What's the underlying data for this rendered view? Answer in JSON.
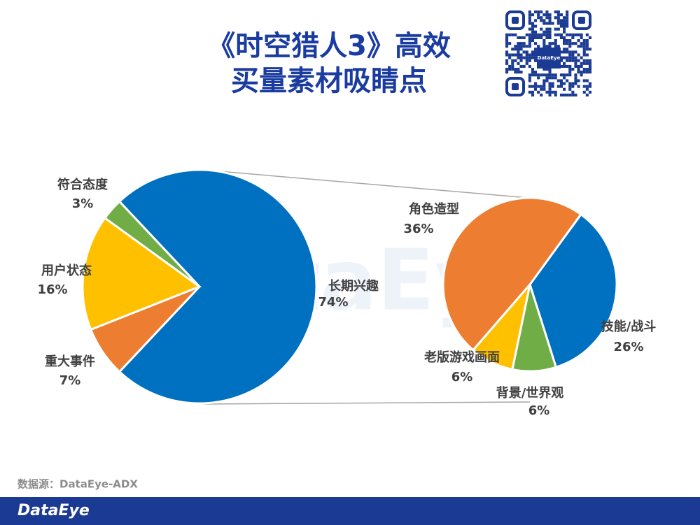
{
  "header": {
    "title_lines": [
      "《时空猎人3》高效",
      "买量素材吸睛点"
    ]
  },
  "qr_label": "DataEye",
  "watermark": "DataEye",
  "source": "数据源：DataEye-ADX",
  "footer": {
    "brand": "DataEye"
  },
  "chart_data": [
    {
      "type": "pie",
      "categories": [
        "长期兴趣",
        "重大事件",
        "用户状态",
        "符合态度"
      ],
      "values": [
        74,
        7,
        16,
        3
      ],
      "value_labels": [
        "74%",
        "7%",
        "16%",
        "3%"
      ],
      "colors": [
        "#0070c0",
        "#ed7d31",
        "#ffc000",
        "#70ad47"
      ]
    },
    {
      "type": "pie",
      "categories": [
        "技能/战斗",
        "背景/世界观",
        "老版游戏画面",
        "角色造型"
      ],
      "values": [
        26,
        6,
        6,
        36
      ],
      "value_labels": [
        "26%",
        "6%",
        "6%",
        "36%"
      ],
      "colors": [
        "#0070c0",
        "#70ad47",
        "#ffc000",
        "#ed7d31"
      ]
    }
  ]
}
